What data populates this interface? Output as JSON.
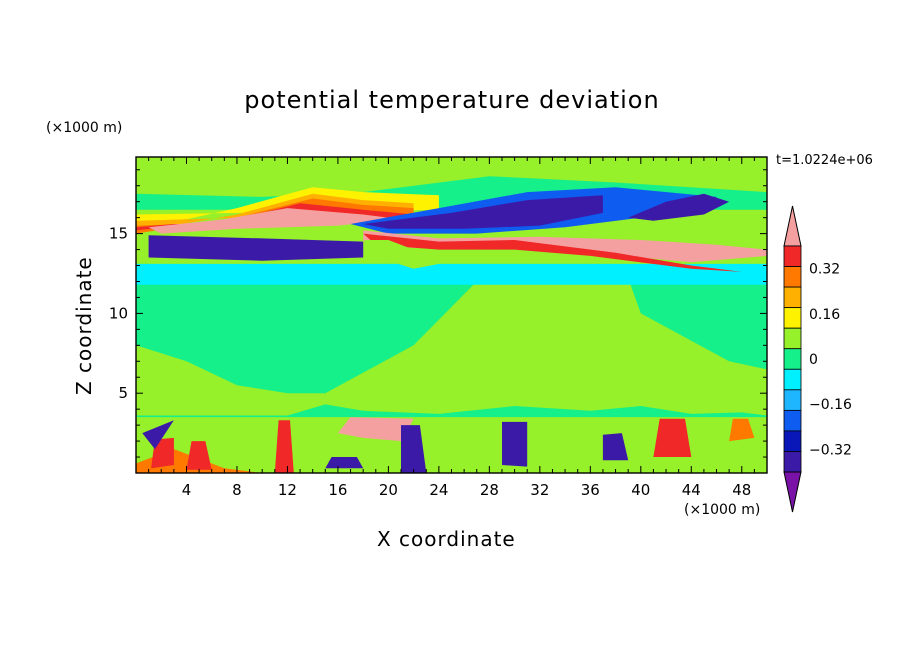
{
  "chart_data": {
    "type": "heatmap",
    "subtype": "filled-contour",
    "title": "potential temperature deviation",
    "xlabel": "X coordinate",
    "ylabel": "Z coordinate",
    "x_unit": "(×1000 m)",
    "y_unit": "(×1000 m)",
    "time_label": "t=1.0224e+06",
    "xlim": [
      0,
      50
    ],
    "ylim": [
      0,
      19.8
    ],
    "x_ticks": [
      4,
      8,
      12,
      16,
      20,
      24,
      28,
      32,
      36,
      40,
      44,
      48
    ],
    "y_ticks": [
      5,
      10,
      15
    ],
    "colorbar": {
      "levels": [
        -0.48,
        -0.4,
        -0.32,
        -0.24,
        -0.16,
        -0.08,
        0,
        0.08,
        0.16,
        0.24,
        0.32,
        0.4,
        0.48
      ],
      "tick_values": [
        -0.32,
        -0.16,
        0,
        0.16,
        0.32
      ],
      "tick_labels": [
        "−0.32",
        "−0.16",
        "0",
        "0.16",
        "0.32"
      ],
      "colors": [
        "#7a12a8",
        "#3c1aa8",
        "#0a17b8",
        "#0f5cf0",
        "#1eb6ff",
        "#00f0ff",
        "#16f08a",
        "#96f02a",
        "#fff200",
        "#ffb000",
        "#ff7800",
        "#f02828",
        "#f5a0a0"
      ],
      "extend": "both"
    },
    "regions": [
      {
        "level": 0.04,
        "points": [
          [
            0,
            0
          ],
          [
            50,
            0
          ],
          [
            50,
            19.8
          ],
          [
            0,
            19.8
          ]
        ]
      },
      {
        "level": -0.04,
        "points": [
          [
            15,
            5
          ],
          [
            22,
            8
          ],
          [
            27,
            12
          ],
          [
            39,
            12.2
          ],
          [
            40,
            10
          ],
          [
            47,
            7
          ],
          [
            50,
            6.5
          ],
          [
            50,
            12.2
          ],
          [
            0,
            12.2
          ],
          [
            0,
            8
          ],
          [
            4,
            7
          ],
          [
            8,
            5.5
          ],
          [
            12,
            5
          ]
        ]
      },
      {
        "level": -0.04,
        "points": [
          [
            12,
            3.6
          ],
          [
            15,
            4.3
          ],
          [
            18,
            3.9
          ],
          [
            24,
            3.7
          ],
          [
            30,
            4.2
          ],
          [
            36,
            3.9
          ],
          [
            40,
            4.2
          ],
          [
            44,
            3.7
          ],
          [
            48,
            3.8
          ],
          [
            50,
            3.6
          ],
          [
            50,
            3.5
          ],
          [
            0,
            3.5
          ],
          [
            0,
            3.6
          ]
        ]
      },
      {
        "level": -0.12,
        "points": [
          [
            0,
            11.8
          ],
          [
            50,
            11.8
          ],
          [
            50,
            13.1
          ],
          [
            0,
            13.1
          ]
        ]
      },
      {
        "level": -0.04,
        "points": [
          [
            0,
            17.5
          ],
          [
            10,
            17.3
          ],
          [
            18,
            17.6
          ],
          [
            28,
            18.6
          ],
          [
            38,
            18.2
          ],
          [
            46,
            17.8
          ],
          [
            50,
            17.6
          ],
          [
            50,
            16.5
          ],
          [
            0,
            16.5
          ]
        ]
      },
      {
        "level": 0.12,
        "points": [
          [
            0,
            15.2
          ],
          [
            8,
            16.6
          ],
          [
            14,
            17.9
          ],
          [
            18,
            17.6
          ],
          [
            24,
            17.4
          ],
          [
            24,
            16.5
          ],
          [
            0,
            16.2
          ]
        ]
      },
      {
        "level": 0.2,
        "points": [
          [
            0,
            15.1
          ],
          [
            8,
            16.2
          ],
          [
            14,
            17.5
          ],
          [
            18,
            17.1
          ],
          [
            22,
            16.9
          ],
          [
            22,
            16.3
          ],
          [
            0,
            15.8
          ]
        ]
      },
      {
        "level": 0.28,
        "points": [
          [
            0,
            15.0
          ],
          [
            8,
            16.0
          ],
          [
            14,
            17.2
          ],
          [
            18,
            16.8
          ],
          [
            22,
            16.6
          ],
          [
            22,
            16.1
          ],
          [
            0,
            15.5
          ]
        ]
      },
      {
        "level": 0.36,
        "points": [
          [
            0,
            15.2
          ],
          [
            8,
            15.9
          ],
          [
            13,
            16.9
          ],
          [
            18,
            16.5
          ],
          [
            22,
            16.2
          ],
          [
            21,
            15.9
          ],
          [
            16,
            15.7
          ],
          [
            10,
            15.4
          ],
          [
            3,
            15.6
          ],
          [
            0,
            15.4
          ]
        ]
      },
      {
        "level": 0.52,
        "points": [
          [
            1,
            15.4
          ],
          [
            7,
            15.9
          ],
          [
            12,
            16.6
          ],
          [
            18,
            16.2
          ],
          [
            21,
            15.9
          ],
          [
            16,
            15.5
          ],
          [
            8,
            15.3
          ],
          [
            2,
            15.0
          ]
        ]
      },
      {
        "level": -0.28,
        "points": [
          [
            17,
            15.6
          ],
          [
            24,
            16.6
          ],
          [
            31,
            17.6
          ],
          [
            38,
            17.9
          ],
          [
            46,
            17.3
          ],
          [
            46,
            16.6
          ],
          [
            40,
            16.0
          ],
          [
            34,
            15.4
          ],
          [
            27,
            15.0
          ],
          [
            20,
            15.0
          ]
        ]
      },
      {
        "level": -0.44,
        "points": [
          [
            18,
            15.6
          ],
          [
            25,
            16.3
          ],
          [
            31,
            17.1
          ],
          [
            37,
            17.4
          ],
          [
            37,
            16.3
          ],
          [
            32,
            15.5
          ],
          [
            26,
            15.3
          ],
          [
            20,
            15.3
          ]
        ]
      },
      {
        "level": -0.44,
        "points": [
          [
            39,
            16.0
          ],
          [
            42,
            17.0
          ],
          [
            45,
            17.5
          ],
          [
            47,
            17.0
          ],
          [
            45,
            16.2
          ],
          [
            41,
            15.8
          ]
        ]
      },
      {
        "level": -0.44,
        "points": [
          [
            1,
            14.9
          ],
          [
            10,
            14.7
          ],
          [
            18,
            14.5
          ],
          [
            18,
            13.5
          ],
          [
            10,
            13.3
          ],
          [
            1,
            13.5
          ]
        ]
      },
      {
        "level": 0.52,
        "points": [
          [
            18,
            15.2
          ],
          [
            24,
            14.7
          ],
          [
            32,
            14.8
          ],
          [
            40,
            14.6
          ],
          [
            46,
            14.3
          ],
          [
            50,
            14.0
          ],
          [
            50,
            13.6
          ],
          [
            44,
            13.2
          ],
          [
            36,
            13.8
          ],
          [
            28,
            14.2
          ],
          [
            22,
            14.1
          ],
          [
            18,
            14.5
          ]
        ]
      },
      {
        "level": 0.36,
        "points": [
          [
            18,
            15.0
          ],
          [
            24,
            14.5
          ],
          [
            30,
            14.6
          ],
          [
            38,
            13.8
          ],
          [
            44,
            13.0
          ],
          [
            48,
            12.6
          ],
          [
            44,
            12.8
          ],
          [
            36,
            13.6
          ],
          [
            30,
            14.0
          ],
          [
            24,
            14.0
          ],
          [
            19,
            14.3
          ]
        ]
      },
      {
        "level": 0.04,
        "points": [
          [
            18,
            14.6
          ],
          [
            20,
            13.3
          ],
          [
            22,
            12.8
          ],
          [
            24,
            13.1
          ],
          [
            22,
            14.0
          ],
          [
            20,
            14.6
          ]
        ]
      },
      {
        "level": 0.28,
        "points": [
          [
            0,
            0.6
          ],
          [
            3,
            1.5
          ],
          [
            7,
            0.3
          ],
          [
            10,
            0
          ],
          [
            0,
            0
          ]
        ]
      },
      {
        "level": 0.36,
        "points": [
          [
            1.2,
            0.3
          ],
          [
            3,
            0.5
          ],
          [
            3,
            2.2
          ],
          [
            1.5,
            2.1
          ]
        ]
      },
      {
        "level": 0.52,
        "points": [
          [
            16,
            2.5
          ],
          [
            17,
            3.5
          ],
          [
            22,
            3.4
          ],
          [
            21,
            2.0
          ],
          [
            18,
            2.2
          ]
        ]
      },
      {
        "level": -0.44,
        "points": [
          [
            21,
            0
          ],
          [
            23,
            0
          ],
          [
            22.5,
            3.0
          ],
          [
            21.0,
            3.0
          ]
        ]
      },
      {
        "level": -0.44,
        "points": [
          [
            29,
            0.5
          ],
          [
            31,
            0.4
          ],
          [
            31,
            3.2
          ],
          [
            29,
            3.2
          ]
        ]
      },
      {
        "level": -0.44,
        "points": [
          [
            0.5,
            2.5
          ],
          [
            3,
            3.3
          ],
          [
            1.5,
            1.5
          ]
        ]
      },
      {
        "level": -0.44,
        "points": [
          [
            37,
            0.8
          ],
          [
            39,
            0.8
          ],
          [
            38.5,
            2.5
          ],
          [
            37,
            2.4
          ]
        ]
      },
      {
        "level": -0.44,
        "points": [
          [
            15,
            0.3
          ],
          [
            18,
            0.3
          ],
          [
            17.5,
            1.0
          ],
          [
            15.5,
            1.0
          ]
        ]
      },
      {
        "level": 0.36,
        "points": [
          [
            11,
            0
          ],
          [
            12.5,
            0
          ],
          [
            12.2,
            3.3
          ],
          [
            11.3,
            3.3
          ]
        ]
      },
      {
        "level": 0.36,
        "points": [
          [
            41,
            1.0
          ],
          [
            44,
            1.0
          ],
          [
            43.5,
            3.4
          ],
          [
            41.5,
            3.4
          ]
        ]
      },
      {
        "level": 0.36,
        "points": [
          [
            4,
            0.2
          ],
          [
            6,
            0.2
          ],
          [
            5.5,
            2.0
          ],
          [
            4.4,
            2.0
          ]
        ]
      },
      {
        "level": 0.28,
        "points": [
          [
            47,
            2.0
          ],
          [
            49,
            2.2
          ],
          [
            48.5,
            3.4
          ],
          [
            47.3,
            3.4
          ]
        ]
      }
    ]
  }
}
